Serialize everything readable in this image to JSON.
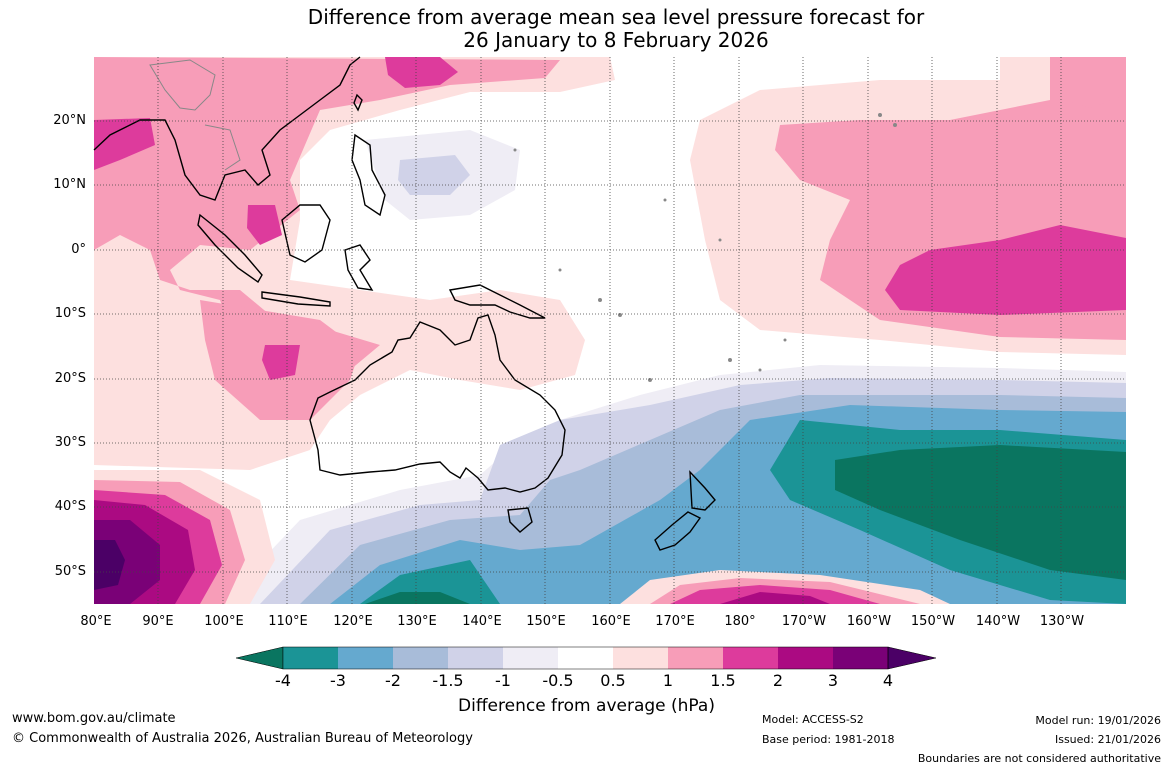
{
  "title_line1": "Difference from average mean sea level pressure forecast for",
  "title_line2": "26 January to 8 February 2026",
  "lat_labels": [
    "20°N",
    "10°N",
    "0°",
    "10°S",
    "20°S",
    "30°S",
    "40°S",
    "50°S"
  ],
  "lon_labels": [
    "80°E",
    "90°E",
    "100°E",
    "110°E",
    "120°E",
    "130°E",
    "140°E",
    "150°E",
    "160°E",
    "170°E",
    "180°",
    "170°W",
    "160°W",
    "150°W",
    "140°W",
    "130°W"
  ],
  "colorbar": {
    "ticks": [
      "-4",
      "-3",
      "-2",
      "-1.5",
      "-1",
      "-0.5",
      "0.5",
      "1",
      "1.5",
      "2",
      "3",
      "4"
    ],
    "label": "Difference from average (hPa)",
    "colors": [
      "#0a7560",
      "#1b9496",
      "#65a9cf",
      "#a8bcd9",
      "#d0d2e8",
      "#efedf5",
      "#ffffff",
      "#fde0df",
      "#f79db8",
      "#dd3b9c",
      "#ab0a82",
      "#7a0177",
      "#4b0066"
    ]
  },
  "footer": {
    "website": "www.bom.gov.au/climate",
    "copyright": "© Commonwealth of Australia 2026, Australian Bureau of Meteorology",
    "model": "Model: ACCESS-S2",
    "base_period": "Base period: 1981-2018",
    "model_run": "Model run: 19/01/2026",
    "issued": "Issued: 21/01/2026",
    "boundaries": "Boundaries are not considered authoritative"
  }
}
